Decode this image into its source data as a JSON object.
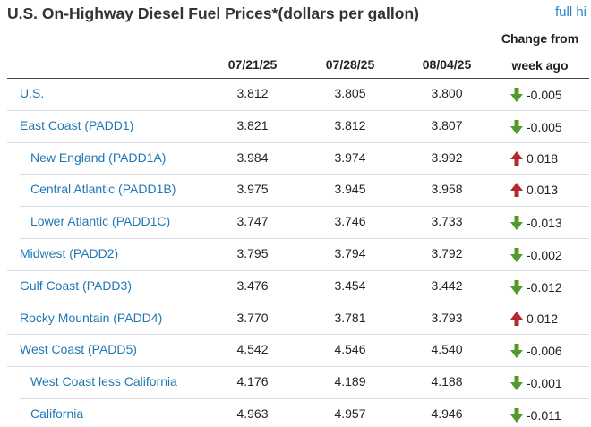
{
  "title": "U.S. On-Highway Diesel Fuel Prices*(dollars per gallon)",
  "full_history_link": "full hi",
  "columns": [
    "07/21/25",
    "07/28/25",
    "08/04/25"
  ],
  "change_header_line1": "Change from",
  "change_header_line2": "week ago",
  "colors": {
    "down": "#4e9a2a",
    "up": "#b22a2e",
    "link": "#1f78b4"
  },
  "rows": [
    {
      "label": "U.S.",
      "indent": false,
      "values": [
        "3.812",
        "3.805",
        "3.800"
      ],
      "change": "-0.005",
      "direction": "down"
    },
    {
      "label": "East Coast (PADD1)",
      "indent": false,
      "values": [
        "3.821",
        "3.812",
        "3.807"
      ],
      "change": "-0.005",
      "direction": "down"
    },
    {
      "label": "New England (PADD1A)",
      "indent": true,
      "values": [
        "3.984",
        "3.974",
        "3.992"
      ],
      "change": "0.018",
      "direction": "up"
    },
    {
      "label": "Central Atlantic (PADD1B)",
      "indent": true,
      "values": [
        "3.975",
        "3.945",
        "3.958"
      ],
      "change": "0.013",
      "direction": "up"
    },
    {
      "label": "Lower Atlantic (PADD1C)",
      "indent": true,
      "values": [
        "3.747",
        "3.746",
        "3.733"
      ],
      "change": "-0.013",
      "direction": "down"
    },
    {
      "label": "Midwest (PADD2)",
      "indent": false,
      "values": [
        "3.795",
        "3.794",
        "3.792"
      ],
      "change": "-0.002",
      "direction": "down"
    },
    {
      "label": "Gulf Coast (PADD3)",
      "indent": false,
      "values": [
        "3.476",
        "3.454",
        "3.442"
      ],
      "change": "-0.012",
      "direction": "down"
    },
    {
      "label": "Rocky Mountain (PADD4)",
      "indent": false,
      "values": [
        "3.770",
        "3.781",
        "3.793"
      ],
      "change": "0.012",
      "direction": "up"
    },
    {
      "label": "West Coast (PADD5)",
      "indent": false,
      "values": [
        "4.542",
        "4.546",
        "4.540"
      ],
      "change": "-0.006",
      "direction": "down"
    },
    {
      "label": "West Coast less California",
      "indent": true,
      "values": [
        "4.176",
        "4.189",
        "4.188"
      ],
      "change": "-0.001",
      "direction": "down"
    },
    {
      "label": "California",
      "indent": true,
      "values": [
        "4.963",
        "4.957",
        "4.946"
      ],
      "change": "-0.011",
      "direction": "down"
    }
  ]
}
